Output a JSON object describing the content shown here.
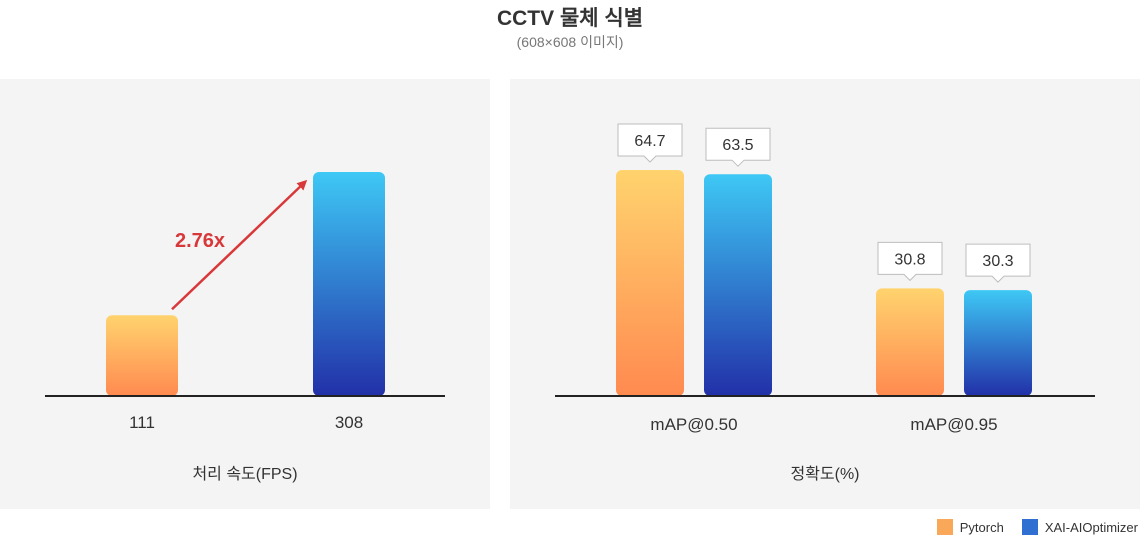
{
  "header": {
    "title": "CCTV 물체 식별",
    "subtitle": "(608×608 이미지)"
  },
  "legend": [
    {
      "label": "Pytorch",
      "color": "#f9a85a"
    },
    {
      "label": "XAI-AIOptimizer",
      "color": "#2e6fd1"
    }
  ],
  "colors": {
    "pytorch_top": "#ffd36e",
    "pytorch_bottom": "#ff8a50",
    "xai_top": "#3ec8f5",
    "xai_bottom": "#2230a8",
    "arrow": "#d9383a"
  },
  "chart_data": [
    {
      "type": "bar",
      "xlabel": "처리 속도(FPS)",
      "categories": [
        "111",
        "308"
      ],
      "series": [
        {
          "name": "Pytorch",
          "values": [
            111,
            null
          ]
        },
        {
          "name": "XAI-AIOptimizer",
          "values": [
            null,
            308
          ]
        }
      ],
      "annotation": "2.76x",
      "ylim": [
        0,
        308
      ],
      "grid": false
    },
    {
      "type": "bar",
      "xlabel": "정확도(%)",
      "categories": [
        "mAP@0.50",
        "mAP@0.95"
      ],
      "series": [
        {
          "name": "Pytorch",
          "values": [
            64.7,
            30.8
          ]
        },
        {
          "name": "XAI-AIOptimizer",
          "values": [
            63.5,
            30.3
          ]
        }
      ],
      "data_labels": [
        "64.7",
        "30.8",
        "63.5",
        "30.3"
      ],
      "ylim": [
        0,
        64.7
      ],
      "grid": false
    }
  ]
}
